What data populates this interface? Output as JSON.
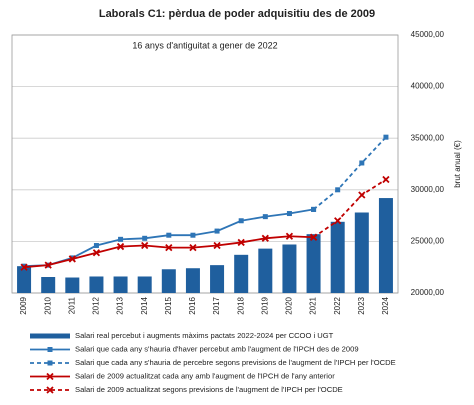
{
  "chart_data": {
    "type": "bar_line",
    "title": "Laborals C1: pèrdua de poder adquisitiu des de 2009",
    "subtitle": "16 anys d'antiguitat a gener de 2022",
    "y_label": "brut anual (€)",
    "categories": [
      "2009",
      "2010",
      "2011",
      "2012",
      "2013",
      "2014",
      "2015",
      "2016",
      "2017",
      "2018",
      "2019",
      "2020",
      "2021",
      "2022",
      "2023",
      "2024"
    ],
    "ylim": [
      20000,
      45000
    ],
    "yticks": [
      {
        "value": 20000,
        "label": "20000,00"
      },
      {
        "value": 25000,
        "label": "25000,00"
      },
      {
        "value": 30000,
        "label": "30000,00"
      },
      {
        "value": 35000,
        "label": "35000,00"
      },
      {
        "value": 40000,
        "label": "40000,00"
      },
      {
        "value": 45000,
        "label": "45000,00"
      }
    ],
    "grid": true,
    "series": [
      {
        "name": "Salari real percebut i augments màxims pactats 2022-2024 per CCOO i UGT",
        "style": "bar",
        "color": "#1f5f9e",
        "values": [
          22600,
          21550,
          21500,
          21600,
          21600,
          21600,
          22300,
          22400,
          22700,
          23700,
          24300,
          24700,
          25700,
          26900,
          27800,
          29200
        ]
      },
      {
        "name": "Salari que cada any s'hauria d'haver percebut amb l'augment de l'IPCH des de 2009",
        "style": "line",
        "dashed": false,
        "marker": "square",
        "color": "#2e75b6",
        "values": [
          22600,
          22700,
          23400,
          24600,
          25200,
          25300,
          25600,
          25600,
          26000,
          27000,
          27400,
          27700,
          28100,
          null,
          null,
          null
        ]
      },
      {
        "name": "Salari que cada any s'hauria de percebre segons previsions de l'augment de l'IPCH per l'OCDE",
        "style": "line",
        "dashed": true,
        "marker": "square",
        "color": "#2e75b6",
        "values": [
          null,
          null,
          null,
          null,
          null,
          null,
          null,
          null,
          null,
          null,
          null,
          null,
          28100,
          30000,
          32600,
          35100
        ]
      },
      {
        "name": "Salari de 2009 actualitzat cada any amb l'augment de l'IPCH de l'any anterior",
        "style": "line",
        "dashed": false,
        "marker": "x",
        "color": "#c00000",
        "values": [
          22500,
          22700,
          23300,
          23900,
          24500,
          24600,
          24400,
          24400,
          24600,
          24900,
          25300,
          25500,
          25400,
          null,
          null,
          null
        ]
      },
      {
        "name": "Salari de 2009 actualitzat segons previsions de l'augment de l'IPCH per l'OCDE",
        "style": "line",
        "dashed": true,
        "marker": "x",
        "color": "#c00000",
        "values": [
          null,
          null,
          null,
          null,
          null,
          null,
          null,
          null,
          null,
          null,
          null,
          null,
          25400,
          27000,
          29500,
          31000
        ]
      }
    ]
  }
}
